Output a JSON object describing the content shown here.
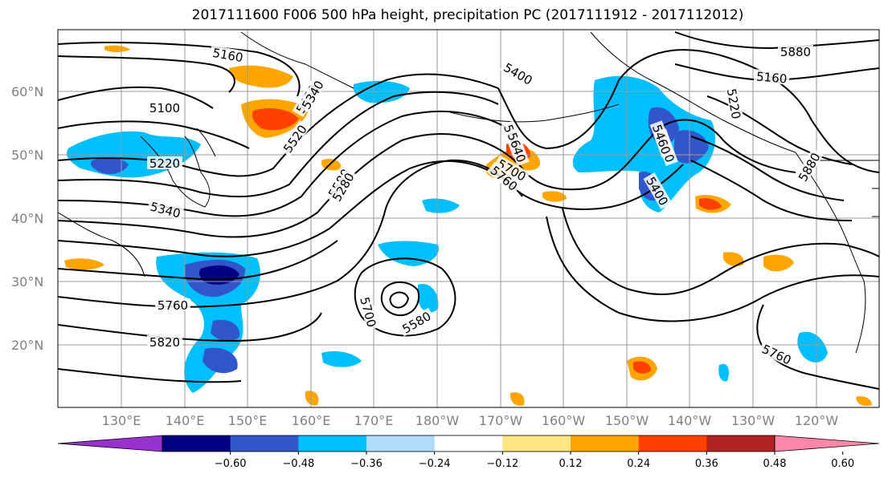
{
  "title": "2017111600 F006 500 hPa height, precipitation PC (2017111912 - 2017112012)",
  "map": {
    "lat_labels": [
      "20°N",
      "30°N",
      "40°N",
      "50°N",
      "60°N"
    ],
    "lon_labels": [
      "130°E",
      "140°E",
      "150°E",
      "160°E",
      "170°E",
      "180°W",
      "170°W",
      "160°W",
      "150°W",
      "140°W",
      "130°W",
      "120°W"
    ],
    "contour_labels": [
      "5100",
      "5160",
      "5220",
      "5340",
      "5400",
      "5460",
      "5520",
      "5580",
      "5640",
      "5700",
      "5760",
      "5820",
      "5880",
      "5160",
      "5220",
      "5280",
      "5400",
      "5580",
      "5700",
      "5760",
      "5880",
      "5340",
      "5280",
      "5460",
      "5640",
      "5760"
    ]
  },
  "colorbar": {
    "ticks": [
      "−0.60",
      "−0.48",
      "−0.36",
      "−0.24",
      "−0.12",
      "0.12",
      "0.24",
      "0.36",
      "0.48",
      "0.60"
    ],
    "colors": [
      "#9932cc",
      "#000080",
      "#3355cc",
      "#00bfff",
      "#aedcfa",
      "#ffffff",
      "#ffe680",
      "#ffa500",
      "#ff4000",
      "#b22222",
      "#ff88aa"
    ]
  }
}
